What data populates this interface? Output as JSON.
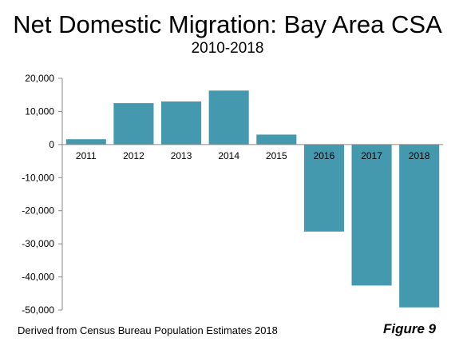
{
  "title": "Net Domestic Migration: Bay Area CSA",
  "subtitle": "2010-2018",
  "source_note": "Derived from Census Bureau Population Estimates 2018",
  "figure_label": "Figure 9",
  "colors": {
    "bar": "#4599ae",
    "axis": "#888888",
    "text": "#000000"
  },
  "chart_data": {
    "type": "bar",
    "title": "Net Domestic Migration: Bay Area CSA",
    "subtitle": "2010-2018",
    "xlabel": "",
    "ylabel": "",
    "categories": [
      "2011",
      "2012",
      "2013",
      "2014",
      "2015",
      "2016",
      "2017",
      "2018"
    ],
    "values": [
      1600,
      12500,
      13000,
      16300,
      3000,
      -26300,
      -42600,
      -49200
    ],
    "ylim": [
      -50000,
      20000
    ],
    "yticks": [
      20000,
      10000,
      0,
      -10000,
      -20000,
      -30000,
      -40000,
      -50000
    ],
    "ytick_labels": [
      "20,000",
      "10,000",
      "0",
      "-10,000",
      "-20,000",
      "-30,000",
      "-40,000",
      "-50,000"
    ],
    "grid": false,
    "legend": "none"
  }
}
